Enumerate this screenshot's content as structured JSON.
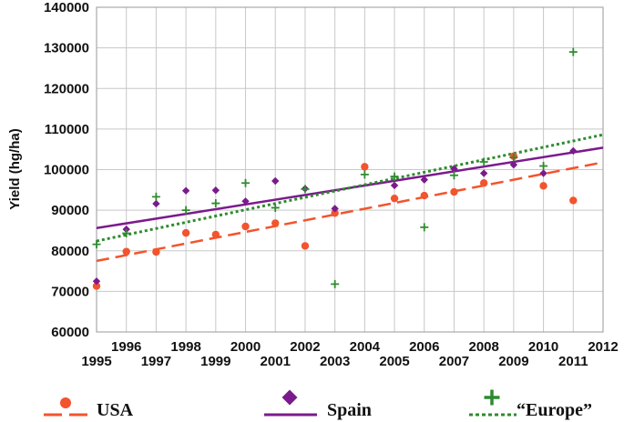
{
  "chart_data": {
    "type": "scatter",
    "title": "",
    "xlabel": "",
    "ylabel": "Yield (hg/ha)",
    "xlim": [
      1995,
      2012
    ],
    "ylim": [
      60000,
      140000
    ],
    "x_ticks": [
      1995,
      1996,
      1997,
      1998,
      1999,
      2000,
      2001,
      2002,
      2003,
      2004,
      2005,
      2006,
      2007,
      2008,
      2009,
      2010,
      2011,
      2012
    ],
    "y_ticks": [
      60000,
      70000,
      80000,
      90000,
      100000,
      110000,
      120000,
      130000,
      140000
    ],
    "grid": true,
    "series": [
      {
        "name": "USA",
        "marker": "circle",
        "color": "#f2542d",
        "trend_style": "dashed",
        "x": [
          1995,
          1996,
          1997,
          1998,
          1999,
          2000,
          2001,
          2002,
          2003,
          2004,
          2005,
          2006,
          2007,
          2008,
          2009,
          2010,
          2011
        ],
        "values": [
          71300,
          79800,
          79700,
          84400,
          84000,
          86000,
          86800,
          81200,
          89300,
          100700,
          92900,
          93600,
          94500,
          96700,
          103300,
          96000,
          92400
        ],
        "trend": [
          77500,
          101800
        ]
      },
      {
        "name": "Spain",
        "marker": "diamond",
        "color": "#7b1a8c",
        "trend_style": "solid",
        "x": [
          1995,
          1996,
          1997,
          1998,
          1999,
          2000,
          2001,
          2002,
          2003,
          2005,
          2006,
          2007,
          2008,
          2009,
          2010,
          2011
        ],
        "values": [
          72500,
          85300,
          91600,
          94800,
          94900,
          92200,
          97200,
          95300,
          90400,
          96100,
          97500,
          100200,
          99100,
          101200,
          99100,
          104600
        ],
        "trend": [
          85600,
          105400
        ]
      },
      {
        "name": "“Europe”",
        "marker": "plus",
        "color": "#2e8b2e",
        "trend_style": "dotted",
        "x": [
          1995,
          1996,
          1997,
          1998,
          1999,
          2000,
          2001,
          2002,
          2003,
          2004,
          2005,
          2006,
          2007,
          2008,
          2009,
          2010,
          2011
        ],
        "values": [
          81600,
          84300,
          93300,
          90000,
          91700,
          96700,
          90600,
          95200,
          71800,
          98800,
          98300,
          85800,
          98600,
          101900,
          103000,
          100900,
          129000
        ],
        "trend": [
          82400,
          108600
        ]
      }
    ]
  }
}
